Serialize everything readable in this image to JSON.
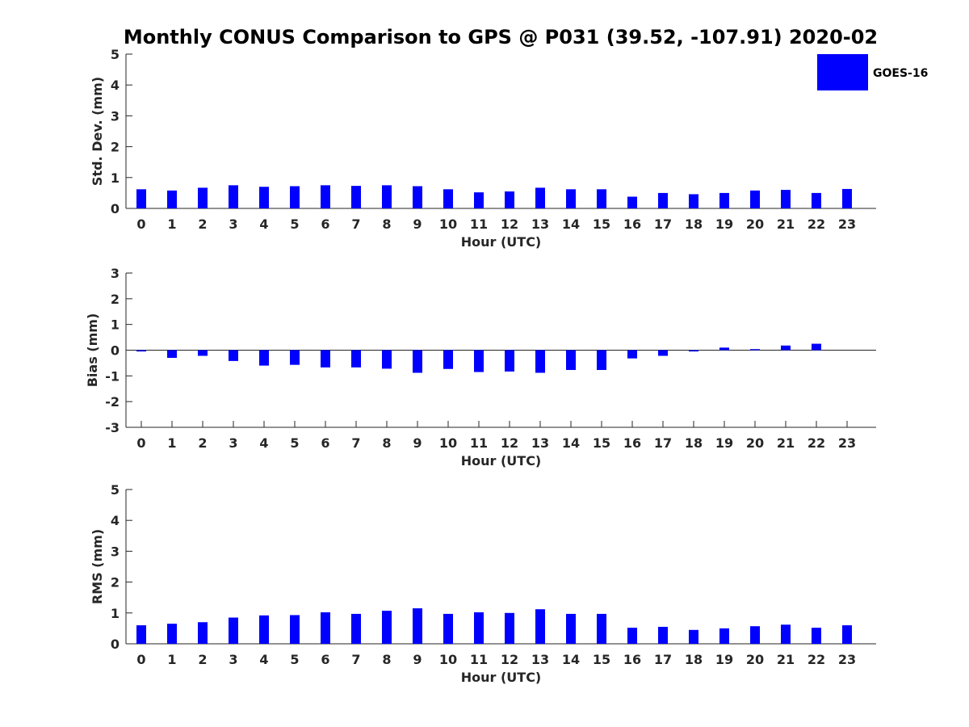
{
  "chart_data": {
    "title": "Monthly CONUS Comparison to GPS @ P031 (39.52, -107.91) 2020-02",
    "legend": {
      "label": "GOES-16",
      "position": "top-right",
      "color": "#0000FF"
    },
    "panels": [
      {
        "type": "bar",
        "ylabel": "Std. Dev. (mm)",
        "xlabel": "Hour (UTC)",
        "ylim": [
          0,
          5
        ],
        "yticks": [
          0,
          1,
          2,
          3,
          4,
          5
        ],
        "categories": [
          "0",
          "1",
          "2",
          "3",
          "4",
          "5",
          "6",
          "7",
          "8",
          "9",
          "10",
          "11",
          "12",
          "13",
          "14",
          "15",
          "16",
          "17",
          "18",
          "19",
          "20",
          "21",
          "22",
          "23"
        ],
        "series": [
          {
            "name": "GOES-16",
            "values": [
              0.62,
              0.58,
              0.67,
              0.75,
              0.7,
              0.72,
              0.75,
              0.73,
              0.75,
              0.72,
              0.62,
              0.52,
              0.55,
              0.67,
              0.62,
              0.62,
              0.38,
              0.5,
              0.46,
              0.5,
              0.58,
              0.6,
              0.5,
              0.63
            ]
          }
        ]
      },
      {
        "type": "bar",
        "ylabel": "Bias (mm)",
        "xlabel": "Hour (UTC)",
        "ylim": [
          -3,
          3
        ],
        "yticks": [
          -3,
          -2,
          -1,
          0,
          1,
          2,
          3
        ],
        "categories": [
          "0",
          "1",
          "2",
          "3",
          "4",
          "5",
          "6",
          "7",
          "8",
          "9",
          "10",
          "11",
          "12",
          "13",
          "14",
          "15",
          "16",
          "17",
          "18",
          "19",
          "20",
          "21",
          "22",
          "23"
        ],
        "series": [
          {
            "name": "GOES-16",
            "values": [
              -0.05,
              -0.3,
              -0.22,
              -0.42,
              -0.6,
              -0.57,
              -0.67,
              -0.67,
              -0.72,
              -0.88,
              -0.73,
              -0.85,
              -0.83,
              -0.88,
              -0.77,
              -0.77,
              -0.32,
              -0.22,
              -0.05,
              0.1,
              0.04,
              0.18,
              0.25,
              0.0
            ]
          }
        ]
      },
      {
        "type": "bar",
        "ylabel": "RMS (mm)",
        "xlabel": "Hour (UTC)",
        "ylim": [
          0,
          5
        ],
        "yticks": [
          0,
          1,
          2,
          3,
          4,
          5
        ],
        "categories": [
          "0",
          "1",
          "2",
          "3",
          "4",
          "5",
          "6",
          "7",
          "8",
          "9",
          "10",
          "11",
          "12",
          "13",
          "14",
          "15",
          "16",
          "17",
          "18",
          "19",
          "20",
          "21",
          "22",
          "23"
        ],
        "series": [
          {
            "name": "GOES-16",
            "values": [
              0.6,
              0.65,
              0.7,
              0.85,
              0.92,
              0.93,
              1.02,
              0.97,
              1.07,
              1.15,
              0.97,
              1.02,
              1.0,
              1.12,
              0.97,
              0.97,
              0.52,
              0.55,
              0.45,
              0.5,
              0.57,
              0.62,
              0.52,
              0.6
            ]
          }
        ]
      }
    ]
  }
}
